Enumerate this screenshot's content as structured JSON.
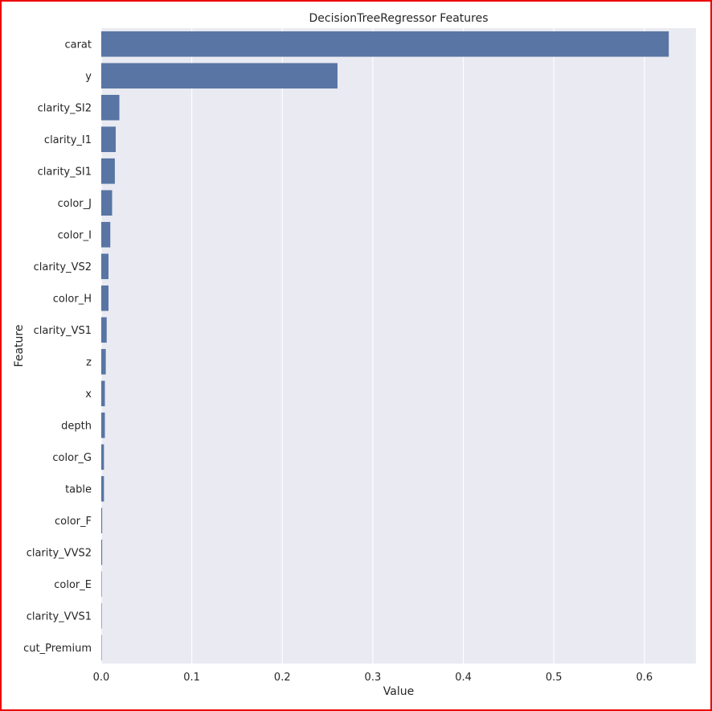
{
  "chart_data": {
    "type": "bar",
    "orientation": "horizontal",
    "title": "DecisionTreeRegressor Features",
    "xlabel": "Value",
    "ylabel": "Feature",
    "categories": [
      "carat",
      "y",
      "clarity_SI2",
      "clarity_I1",
      "clarity_SI1",
      "color_J",
      "color_I",
      "clarity_VS2",
      "color_H",
      "clarity_VS1",
      "z",
      "x",
      "depth",
      "color_G",
      "table",
      "color_F",
      "clarity_VVS2",
      "color_E",
      "clarity_VVS1",
      "cut_Premium"
    ],
    "values": [
      0.627,
      0.261,
      0.02,
      0.016,
      0.015,
      0.012,
      0.01,
      0.008,
      0.008,
      0.006,
      0.005,
      0.004,
      0.004,
      0.003,
      0.003,
      0.001,
      0.001,
      0.0005,
      0.0005,
      0.0003
    ],
    "xlim": [
      0.0,
      0.657
    ],
    "xticks": [
      0.0,
      0.1,
      0.2,
      0.3,
      0.4,
      0.5,
      0.6
    ],
    "xtick_labels": [
      "0.0",
      "0.1",
      "0.2",
      "0.3",
      "0.4",
      "0.5",
      "0.6"
    ],
    "grid": true,
    "colors": {
      "bar": "#5875a4",
      "plot_background": "#eaeaf2",
      "grid": "#ffffff",
      "frame_border": "#ee0000",
      "text": "#262626"
    }
  }
}
